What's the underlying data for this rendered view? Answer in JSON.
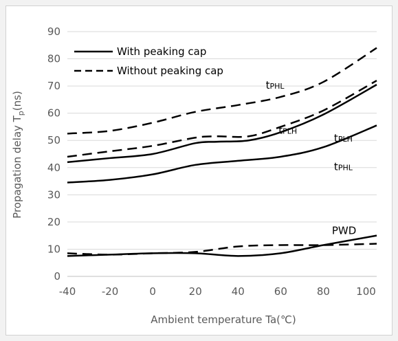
{
  "chart_data": {
    "type": "line",
    "xlabel": "Ambient temperature Ta(℃)",
    "ylabel_main": "Propagation delay  T",
    "ylabel_sub": "p",
    "ylabel_unit": "(ns)",
    "xlim": [
      -40,
      105
    ],
    "ylim": [
      0,
      90
    ],
    "xticks": [
      -40,
      -20,
      0,
      20,
      40,
      60,
      80,
      100
    ],
    "yticks": [
      0,
      10,
      20,
      30,
      40,
      50,
      60,
      70,
      80,
      90
    ],
    "grid": "horizontal",
    "legend_position": "top-left",
    "legend": [
      {
        "label": "With peaking cap",
        "style": "solid"
      },
      {
        "label": "Without peaking cap",
        "style": "dashed"
      }
    ],
    "series": [
      {
        "group": "tPHL",
        "style": "dashed",
        "x": [
          -40,
          -20,
          0,
          20,
          40,
          60,
          80,
          105
        ],
        "y": [
          52.5,
          53.5,
          56.5,
          60.5,
          63,
          66,
          71.5,
          84
        ]
      },
      {
        "group": "tPLH",
        "style": "dashed",
        "x": [
          -40,
          -20,
          0,
          20,
          30,
          45,
          60,
          80,
          105
        ],
        "y": [
          44,
          46,
          48,
          51,
          51.5,
          51.5,
          55,
          61,
          72
        ]
      },
      {
        "group": "tPLH",
        "style": "solid",
        "x": [
          -40,
          -20,
          0,
          20,
          30,
          45,
          60,
          80,
          105
        ],
        "y": [
          42,
          43.5,
          45,
          49,
          49.5,
          50,
          53,
          59.5,
          70.5
        ]
      },
      {
        "group": "tPHL",
        "style": "solid",
        "x": [
          -40,
          -20,
          0,
          20,
          40,
          60,
          80,
          105
        ],
        "y": [
          34.5,
          35.5,
          37.5,
          41,
          42.5,
          44,
          47.5,
          55.5
        ]
      },
      {
        "group": "PWD",
        "style": "dashed",
        "x": [
          -40,
          -20,
          0,
          20,
          40,
          60,
          80,
          105
        ],
        "y": [
          8.5,
          8,
          8.5,
          9,
          11,
          11.5,
          11.5,
          12
        ]
      },
      {
        "group": "PWD",
        "style": "solid",
        "x": [
          -40,
          -20,
          0,
          20,
          40,
          60,
          80,
          105
        ],
        "y": [
          7.5,
          8,
          8.5,
          8.5,
          7.5,
          8.5,
          11.5,
          15
        ]
      }
    ],
    "annotations": [
      {
        "main": "t",
        "sub": "PHL",
        "x": 53,
        "y": 69
      },
      {
        "main": "t",
        "sub": "PLH",
        "x": 59,
        "y": 52.5
      },
      {
        "main": "t",
        "sub": "PLH",
        "x": 85,
        "y": 49.5
      },
      {
        "main": "t",
        "sub": "PHL",
        "x": 85,
        "y": 39
      },
      {
        "main": "PWD",
        "sub": "",
        "x": 84,
        "y": 15.5
      }
    ]
  }
}
